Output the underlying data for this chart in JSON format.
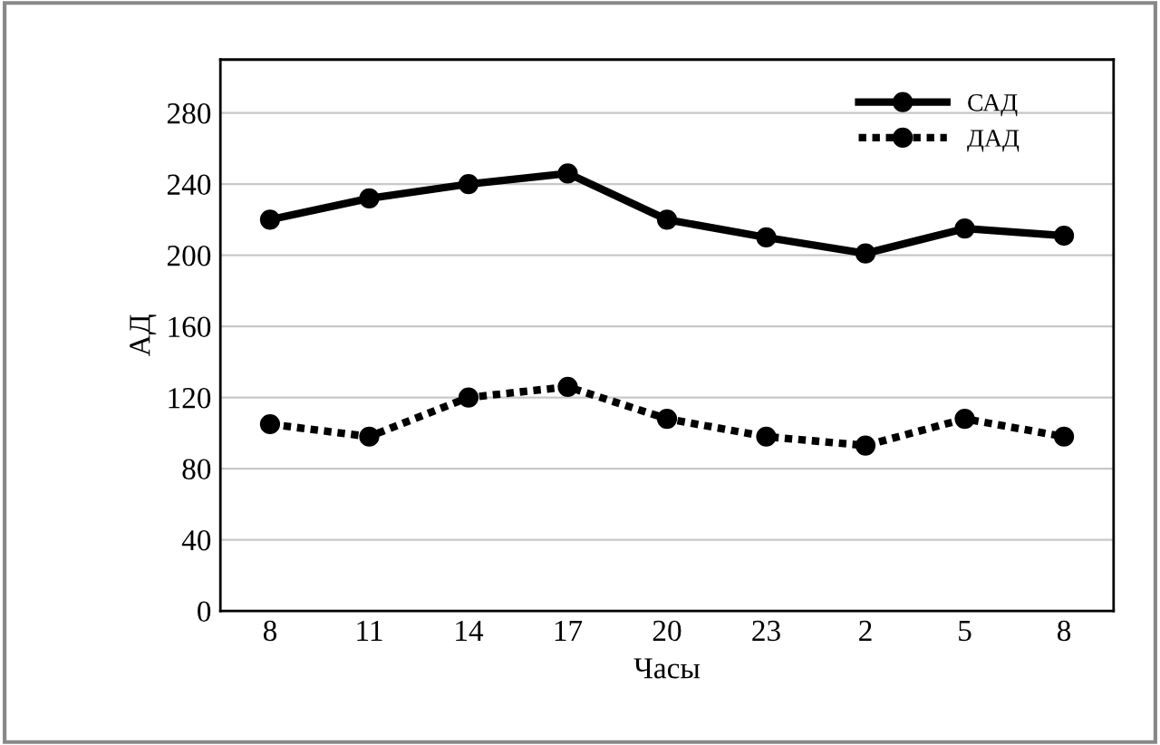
{
  "chart_data": {
    "type": "line",
    "xlabel": "Часы",
    "ylabel": "АД",
    "categories": [
      "8",
      "11",
      "14",
      "17",
      "20",
      "23",
      "2",
      "5",
      "8"
    ],
    "series": [
      {
        "name": "САД",
        "color": "#000000",
        "line_style": "solid",
        "values": [
          220,
          232,
          240,
          246,
          220,
          210,
          201,
          215,
          211
        ]
      },
      {
        "name": "ДАД",
        "color": "#000000",
        "line_style": "dotted",
        "values": [
          105,
          98,
          120,
          126,
          108,
          98,
          93,
          108,
          98
        ]
      }
    ],
    "ylim": [
      0,
      310
    ],
    "yticks": [
      0,
      40,
      80,
      120,
      160,
      200,
      240,
      280
    ],
    "grid": "y",
    "legend": "top right",
    "marker": "circle"
  }
}
